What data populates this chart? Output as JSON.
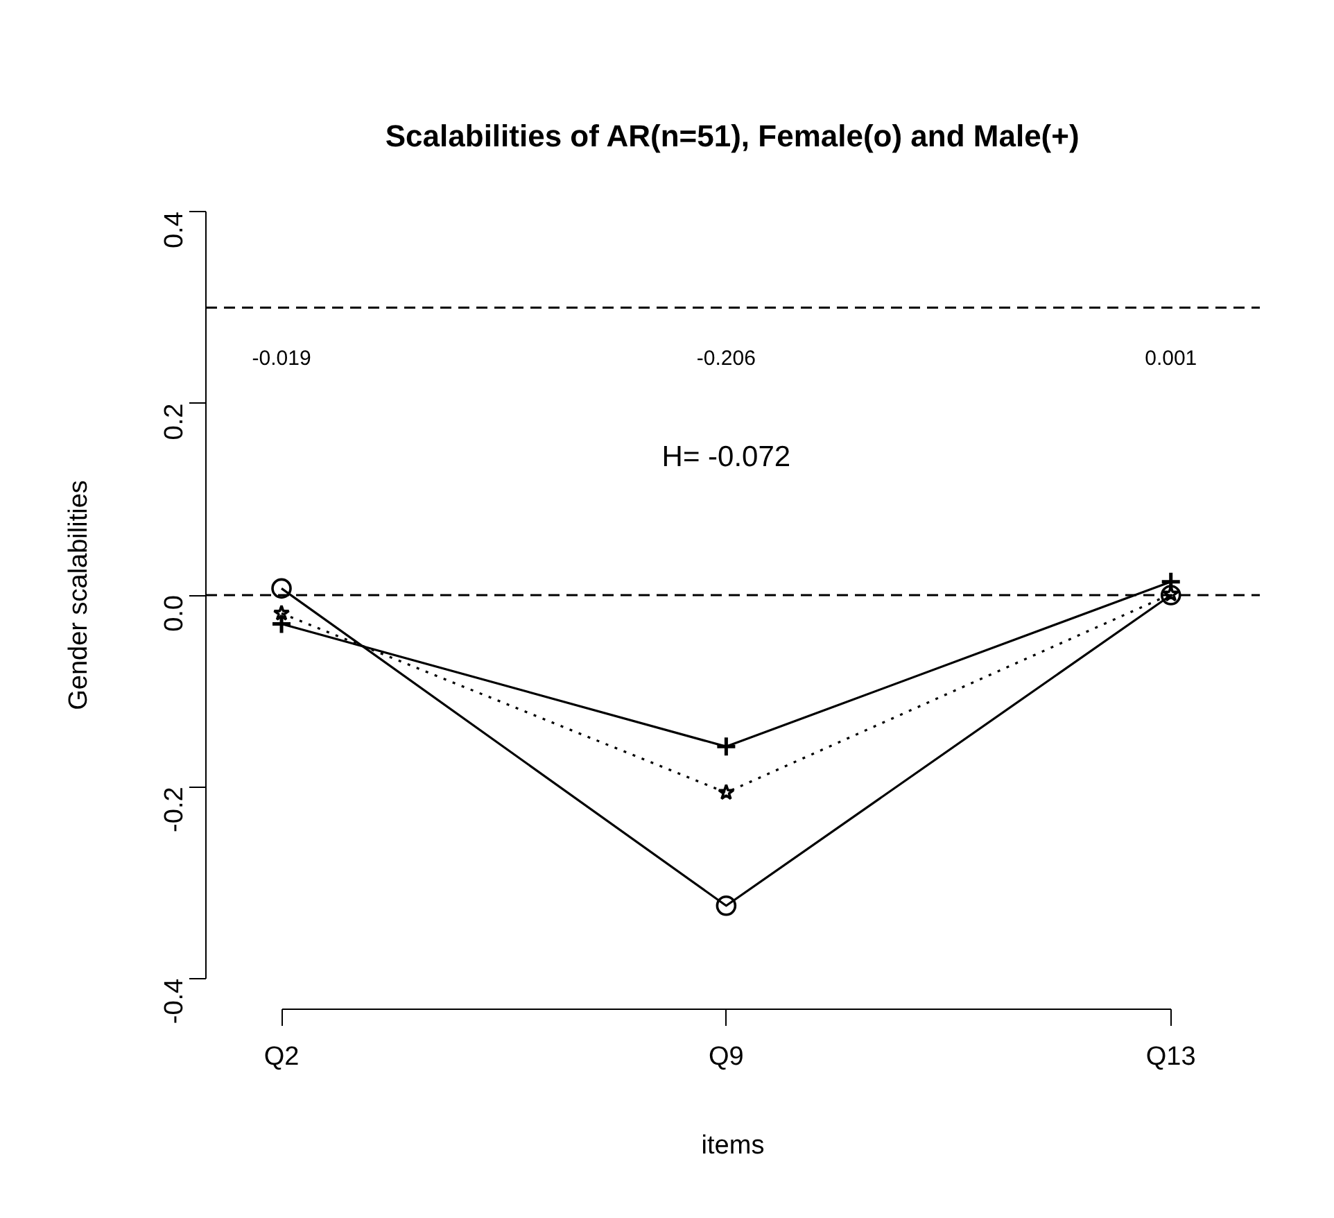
{
  "chart_data": {
    "type": "line",
    "title": "Scalabilities of AR(n=51), Female(o) and Male(+)",
    "xlabel": "items",
    "ylabel": "Gender scalabilities",
    "categories": [
      "Q2",
      "Q9",
      "Q13"
    ],
    "series": [
      {
        "color": "#000000",
        "marker": "circle",
        "line_style": "solid",
        "values": [
          0.007,
          -0.324,
          0.0
        ]
      },
      {
        "color": "#000000",
        "marker": "cross",
        "line_style": "solid",
        "values": [
          -0.03,
          -0.158,
          0.014
        ]
      },
      {
        "color": "#000000",
        "marker": "star",
        "line_style": "dotted",
        "values": [
          -0.019,
          -0.206,
          0.001
        ]
      }
    ],
    "ylim": [
      -0.4,
      0.4
    ],
    "yticks": [
      {
        "value": -0.4,
        "label": "-0.4"
      },
      {
        "value": -0.2,
        "label": "-0.2"
      },
      {
        "value": 0,
        "label": "0.0"
      },
      {
        "value": 0.2,
        "label": "0.2"
      },
      {
        "value": 0.4,
        "label": "0.4"
      }
    ],
    "ref_lines": [
      {
        "axis": "y",
        "value": 0.3,
        "line_style": "dashed"
      },
      {
        "axis": "y",
        "value": 0,
        "line_style": "dashed"
      }
    ],
    "annotations": [
      "-0.019",
      "-0.206",
      "0.001",
      "H= -0.072"
    ],
    "grid": false
  }
}
